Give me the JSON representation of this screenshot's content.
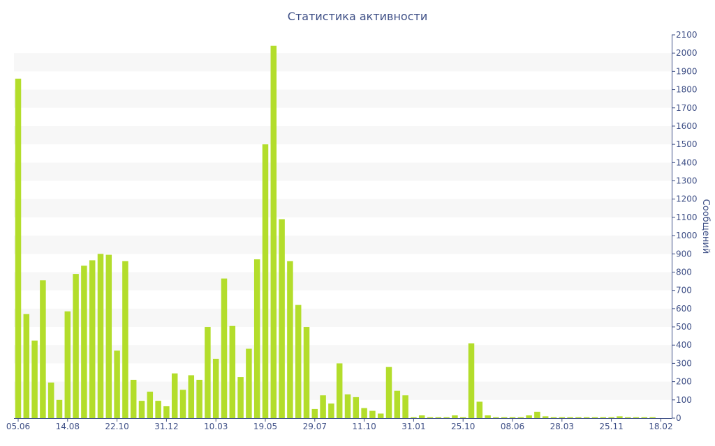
{
  "chart_data": {
    "type": "bar",
    "title": "Статистика активности",
    "ylabel": "Сообщений",
    "xlabel": "",
    "ylim": [
      0,
      2100
    ],
    "y_axis_side": "right",
    "y_ticks": [
      0,
      100,
      200,
      300,
      400,
      500,
      600,
      700,
      800,
      900,
      1000,
      1100,
      1200,
      1300,
      1400,
      1500,
      1600,
      1700,
      1800,
      1900,
      2000,
      2100
    ],
    "x_tick_labels": [
      {
        "index": 0,
        "label": "05.06"
      },
      {
        "index": 6,
        "label": "14.08"
      },
      {
        "index": 12,
        "label": "22.10"
      },
      {
        "index": 18,
        "label": "31.12"
      },
      {
        "index": 24,
        "label": "10.03"
      },
      {
        "index": 30,
        "label": "19.05"
      },
      {
        "index": 36,
        "label": "29.07"
      },
      {
        "index": 42,
        "label": "11.10"
      },
      {
        "index": 48,
        "label": "31.01"
      },
      {
        "index": 54,
        "label": "25.10"
      },
      {
        "index": 60,
        "label": "08.06"
      },
      {
        "index": 66,
        "label": "28.03"
      },
      {
        "index": 72,
        "label": "25.11"
      },
      {
        "index": 78,
        "label": "18.02"
      }
    ],
    "series": [
      {
        "color": "#b3dd2b",
        "values": [
          1860,
          570,
          425,
          755,
          195,
          100,
          585,
          790,
          835,
          865,
          900,
          895,
          370,
          860,
          210,
          95,
          145,
          95,
          65,
          245,
          155,
          235,
          210,
          500,
          325,
          765,
          505,
          225,
          380,
          870,
          1500,
          2040,
          1090,
          860,
          620,
          500,
          50,
          125,
          80,
          300,
          130,
          115,
          55,
          40,
          25,
          280,
          150,
          125,
          5,
          15,
          5,
          5,
          5,
          15,
          5,
          410,
          90,
          15,
          5,
          5,
          5,
          5,
          15,
          35,
          10,
          5,
          5,
          5,
          5,
          5,
          5,
          5,
          5,
          10,
          5,
          5,
          5,
          5
        ]
      }
    ],
    "grid": "alternating horizontal bands",
    "colors": {
      "bar": "#b3dd2b",
      "band": "#f7f7f7",
      "text": "#3e4f86",
      "axis": "#3e4f86"
    }
  }
}
